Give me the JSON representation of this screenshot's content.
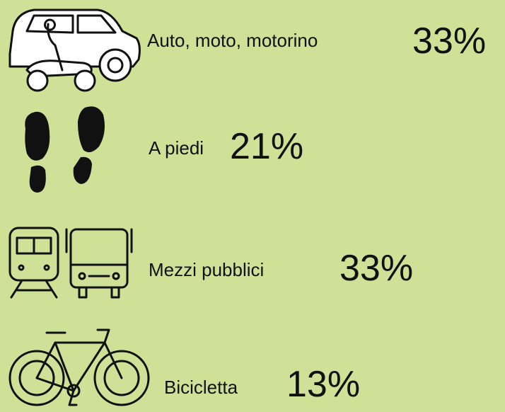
{
  "items": [
    {
      "label": "Auto, moto, motorino",
      "value": "33%"
    },
    {
      "label": "A piedi",
      "value": "21%"
    },
    {
      "label": "Mezzi pubblici",
      "value": "33%"
    },
    {
      "label": "Bicicletta",
      "value": "13%"
    }
  ]
}
